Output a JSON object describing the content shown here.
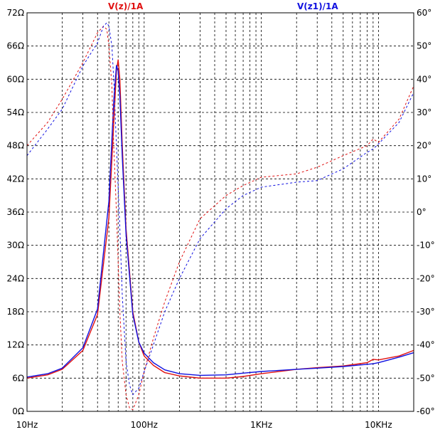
{
  "chart_data": {
    "type": "line",
    "x_scale": "log",
    "xlim": [
      10,
      20000
    ],
    "ylim_left": [
      0,
      72
    ],
    "ylim_right": [
      -60,
      60
    ],
    "grid": true,
    "left_ticks": [
      "72Ω",
      "66Ω",
      "60Ω",
      "54Ω",
      "48Ω",
      "42Ω",
      "36Ω",
      "30Ω",
      "24Ω",
      "18Ω",
      "12Ω",
      "6Ω",
      "0Ω"
    ],
    "right_ticks": [
      "60°",
      "50°",
      "40°",
      "30°",
      "20°",
      "10°",
      "0°",
      "-10°",
      "-20°",
      "-30°",
      "-40°",
      "-50°",
      "-60°"
    ],
    "x_ticks": [
      "10Hz",
      "100Hz",
      "1KHz",
      "10KHz"
    ],
    "legend": [
      {
        "label": "V(z)/1A",
        "color": "#e01010"
      },
      {
        "label": "V(z1)/1A",
        "color": "#1010e0"
      }
    ],
    "series": [
      {
        "name": "V(z)/1A",
        "color": "#e01010",
        "axis": "left",
        "style": "solid",
        "x": [
          10,
          15,
          20,
          30,
          40,
          50,
          55,
          58,
          60,
          62,
          65,
          70,
          80,
          90,
          100,
          120,
          150,
          200,
          300,
          500,
          700,
          1000,
          2000,
          3000,
          5000,
          8000,
          9000,
          10000,
          15000,
          20000
        ],
        "y": [
          6.0,
          6.6,
          7.6,
          11.0,
          17.5,
          35.0,
          52.0,
          61.5,
          63.5,
          60.0,
          48.0,
          33.0,
          18.0,
          12.5,
          10.0,
          8.3,
          7.0,
          6.4,
          6.0,
          6.0,
          6.3,
          6.8,
          7.6,
          7.9,
          8.2,
          8.8,
          9.4,
          9.3,
          10.0,
          11.0
        ]
      },
      {
        "name": "V(z1)/1A",
        "color": "#1010e0",
        "axis": "left",
        "style": "solid",
        "x": [
          10,
          15,
          20,
          30,
          40,
          50,
          55,
          58,
          60,
          62,
          65,
          70,
          80,
          90,
          100,
          120,
          150,
          200,
          300,
          500,
          700,
          1000,
          2000,
          3000,
          5000,
          8000,
          9000,
          10000,
          15000,
          20000
        ],
        "y": [
          6.2,
          6.8,
          7.8,
          11.5,
          18.5,
          38.0,
          56.0,
          62.5,
          61.5,
          57.0,
          46.0,
          32.0,
          17.5,
          12.5,
          10.5,
          8.8,
          7.5,
          6.8,
          6.5,
          6.6,
          6.9,
          7.2,
          7.6,
          7.8,
          8.1,
          8.5,
          8.6,
          8.8,
          9.8,
          10.6
        ]
      },
      {
        "name": "V(z)/1A",
        "color": "#e01010",
        "axis": "right",
        "style": "dashed",
        "x": [
          10,
          15,
          20,
          30,
          40,
          45,
          48,
          50,
          53,
          55,
          58,
          62,
          65,
          70,
          75,
          80,
          90,
          100,
          120,
          150,
          200,
          300,
          500,
          700,
          1000,
          2000,
          3000,
          5000,
          8000,
          9000,
          10000,
          15000,
          20000
        ],
        "y": [
          20.0,
          27.0,
          34.0,
          45.0,
          54.0,
          56.0,
          55.0,
          50.0,
          38.0,
          20.0,
          0.0,
          -30.0,
          -45.0,
          -55.0,
          -59.0,
          -59.5,
          -55.0,
          -48.0,
          -38.0,
          -27.0,
          -15.0,
          -2.0,
          5.0,
          8.0,
          10.5,
          11.5,
          13.5,
          17.0,
          20.0,
          22.0,
          21.0,
          28.0,
          38.0
        ]
      },
      {
        "name": "V(z1)/1A",
        "color": "#1010e0",
        "axis": "right",
        "style": "dashed",
        "x": [
          10,
          15,
          20,
          30,
          40,
          45,
          48,
          50,
          53,
          55,
          58,
          62,
          65,
          70,
          75,
          80,
          90,
          100,
          120,
          150,
          200,
          300,
          500,
          700,
          1000,
          2000,
          3000,
          5000,
          8000,
          9000,
          10000,
          15000,
          20000
        ],
        "y": [
          17.0,
          25.0,
          31.0,
          44.0,
          51.0,
          56.0,
          57.0,
          56.0,
          50.0,
          40.0,
          20.0,
          -5.0,
          -25.0,
          -45.0,
          -52.0,
          -55.0,
          -53.0,
          -48.0,
          -40.0,
          -30.0,
          -20.0,
          -8.0,
          1.0,
          5.0,
          7.5,
          9.0,
          9.5,
          13.0,
          18.0,
          19.0,
          20.5,
          27.0,
          36.0
        ]
      }
    ]
  }
}
